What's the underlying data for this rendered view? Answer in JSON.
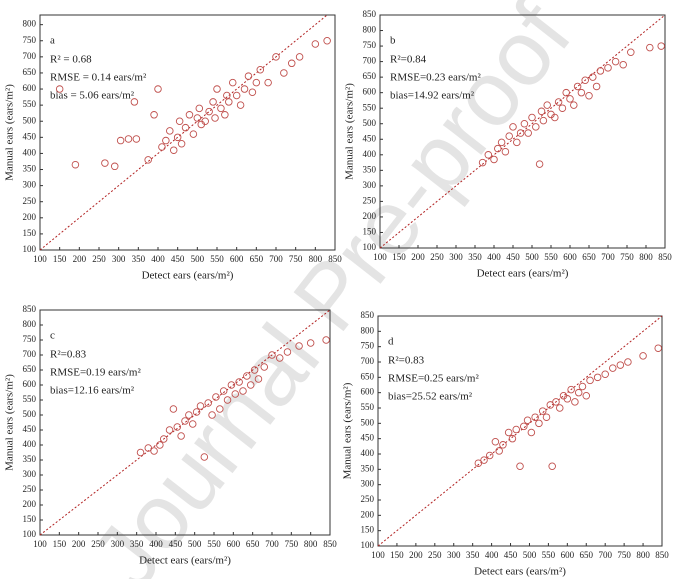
{
  "watermark": "Journal Pre-proof",
  "chart_data": [
    {
      "type": "scatter",
      "panel_label": "a",
      "annotations": [
        "R² = 0.68",
        "RMSE = 0.14  ears/m²",
        "bias = 5.06  ears/m²"
      ],
      "x_label": "Detect ears (ears/m²)",
      "y_label": "Manual ears (ears/m²)",
      "color": "#c0504d",
      "xlim": [
        100,
        850
      ],
      "ylim": [
        100,
        830
      ],
      "xticks": [
        100,
        150,
        200,
        250,
        300,
        350,
        400,
        450,
        500,
        550,
        600,
        650,
        700,
        750,
        800,
        850
      ],
      "yticks": [
        100,
        150,
        200,
        250,
        300,
        350,
        400,
        450,
        500,
        550,
        600,
        650,
        700,
        750,
        800
      ],
      "x": [
        150,
        190,
        265,
        290,
        305,
        325,
        340,
        345,
        375,
        390,
        400,
        410,
        420,
        430,
        440,
        450,
        455,
        460,
        470,
        480,
        490,
        500,
        505,
        510,
        520,
        530,
        540,
        545,
        550,
        560,
        570,
        575,
        580,
        590,
        600,
        610,
        620,
        630,
        640,
        650,
        660,
        680,
        700,
        720,
        740,
        760,
        800,
        830
      ],
      "values": [
        600,
        365,
        370,
        360,
        440,
        445,
        560,
        445,
        380,
        520,
        600,
        420,
        440,
        470,
        410,
        450,
        500,
        430,
        480,
        520,
        460,
        510,
        540,
        490,
        500,
        530,
        560,
        510,
        600,
        540,
        520,
        580,
        560,
        620,
        580,
        550,
        600,
        640,
        590,
        620,
        660,
        620,
        700,
        650,
        680,
        700,
        740,
        750
      ]
    },
    {
      "type": "scatter",
      "panel_label": "b",
      "annotations": [
        "R²=0.84",
        "RMSE=0.23  ears/m²",
        "bias=14.92  ears/m²"
      ],
      "x_label": "Detect ears (ears/m²)",
      "y_label": "Manual ears (ears/m²)",
      "color": "#c0504d",
      "xlim": [
        100,
        850
      ],
      "ylim": [
        100,
        850
      ],
      "xticks": [
        100,
        150,
        200,
        250,
        300,
        350,
        400,
        450,
        500,
        550,
        600,
        650,
        700,
        750,
        800,
        850
      ],
      "yticks": [
        100,
        150,
        200,
        250,
        300,
        350,
        400,
        450,
        500,
        550,
        600,
        650,
        700,
        750,
        800,
        850
      ],
      "x": [
        370,
        385,
        400,
        410,
        420,
        430,
        440,
        450,
        460,
        470,
        480,
        490,
        500,
        510,
        520,
        525,
        530,
        540,
        550,
        560,
        570,
        580,
        590,
        600,
        610,
        620,
        630,
        640,
        650,
        660,
        670,
        680,
        700,
        720,
        740,
        760,
        810,
        840
      ],
      "values": [
        375,
        400,
        385,
        420,
        440,
        410,
        460,
        490,
        440,
        470,
        500,
        470,
        520,
        490,
        370,
        540,
        510,
        560,
        530,
        520,
        570,
        550,
        600,
        580,
        560,
        620,
        600,
        640,
        590,
        650,
        620,
        670,
        680,
        700,
        690,
        730,
        745,
        750
      ]
    },
    {
      "type": "scatter",
      "panel_label": "c",
      "annotations": [
        "R²=0.83",
        "RMSE=0.19  ears/m²",
        "bias=12.16  ears/m²"
      ],
      "x_label": "Detect ears (ears/m²)",
      "y_label": "Manual ears (ears/m²)",
      "color": "#c0504d",
      "xlim": [
        100,
        850
      ],
      "ylim": [
        100,
        850
      ],
      "xticks": [
        100,
        150,
        200,
        250,
        300,
        350,
        400,
        450,
        500,
        550,
        600,
        650,
        700,
        750,
        800,
        850
      ],
      "yticks": [
        100,
        150,
        200,
        250,
        300,
        350,
        400,
        450,
        500,
        550,
        600,
        650,
        700,
        750,
        800,
        850
      ],
      "x": [
        360,
        380,
        395,
        410,
        420,
        435,
        445,
        455,
        465,
        475,
        485,
        495,
        505,
        515,
        525,
        535,
        545,
        555,
        565,
        575,
        585,
        595,
        605,
        615,
        625,
        635,
        645,
        655,
        665,
        680,
        700,
        720,
        740,
        770,
        800,
        840
      ],
      "values": [
        375,
        390,
        380,
        400,
        420,
        450,
        520,
        460,
        430,
        480,
        500,
        470,
        510,
        530,
        360,
        540,
        500,
        560,
        520,
        580,
        550,
        600,
        570,
        610,
        580,
        630,
        600,
        650,
        620,
        660,
        700,
        690,
        710,
        730,
        740,
        750
      ]
    },
    {
      "type": "scatter",
      "panel_label": "d",
      "annotations": [
        "R²=0.83",
        "RMSE=0.25  ears/m²",
        "bias=25.52 ears/m²"
      ],
      "x_label": "Detect ears (ears/m²)",
      "y_label": "Manual ears (ears/m²)",
      "color": "#c0504d",
      "xlim": [
        100,
        850
      ],
      "ylim": [
        100,
        850
      ],
      "xticks": [
        100,
        150,
        200,
        250,
        300,
        350,
        400,
        450,
        500,
        550,
        600,
        650,
        700,
        750,
        800,
        850
      ],
      "yticks": [
        100,
        150,
        200,
        250,
        300,
        350,
        400,
        450,
        500,
        550,
        600,
        650,
        700,
        750,
        800,
        850
      ],
      "x": [
        365,
        380,
        395,
        410,
        420,
        430,
        445,
        455,
        465,
        475,
        485,
        495,
        505,
        515,
        525,
        535,
        545,
        555,
        560,
        570,
        580,
        590,
        600,
        610,
        620,
        630,
        640,
        650,
        660,
        680,
        700,
        720,
        740,
        760,
        800,
        840
      ],
      "values": [
        370,
        380,
        395,
        440,
        410,
        430,
        470,
        450,
        480,
        360,
        490,
        510,
        470,
        520,
        500,
        540,
        520,
        560,
        360,
        570,
        550,
        590,
        580,
        610,
        570,
        600,
        620,
        590,
        640,
        650,
        660,
        680,
        690,
        700,
        720,
        745
      ]
    }
  ]
}
